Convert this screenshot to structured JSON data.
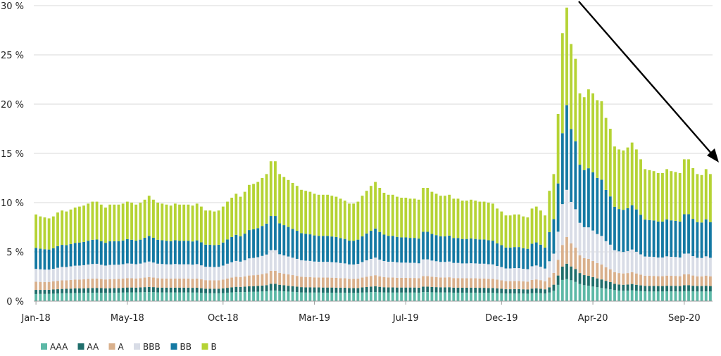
{
  "chart_data": {
    "type": "bar",
    "stacked": true,
    "title": "",
    "xlabel": "",
    "ylabel": "",
    "ylim": [
      0,
      30
    ],
    "y_ticks": [
      "0 %",
      "5 %",
      "10 %",
      "15 %",
      "20 %",
      "25 %",
      "30 %"
    ],
    "x_tick_labels": [
      "Jan-18",
      "May-18",
      "Oct-18",
      "Mar-19",
      "Jul-19",
      "Dec-19",
      "Apr-20",
      "Sep-20"
    ],
    "x_tick_indices": [
      0,
      21,
      43,
      64,
      85,
      107,
      128,
      149
    ],
    "grid": "horizontal",
    "legend_position": "bottom-left",
    "colors": {
      "AAA": "#5cb8a6",
      "AA": "#1f6e6b",
      "A": "#d9b08c",
      "BBB": "#d8dce6",
      "BB": "#1479a3",
      "B": "#b5d334"
    },
    "totals": [
      8.8,
      8.6,
      8.5,
      8.4,
      8.6,
      9.0,
      9.2,
      9.1,
      9.3,
      9.5,
      9.6,
      9.7,
      9.9,
      10.1,
      10.1,
      9.8,
      9.5,
      9.8,
      9.8,
      9.8,
      9.9,
      10.1,
      10.0,
      9.8,
      10.0,
      10.3,
      10.7,
      10.3,
      10.0,
      9.9,
      9.8,
      9.7,
      9.9,
      9.8,
      9.8,
      9.8,
      9.7,
      9.9,
      9.6,
      9.2,
      9.2,
      9.1,
      9.2,
      9.6,
      10.1,
      10.5,
      10.9,
      10.6,
      11.1,
      11.8,
      11.9,
      12.1,
      12.5,
      12.9,
      14.2,
      14.2,
      12.9,
      12.6,
      12.3,
      12.0,
      11.7,
      11.3,
      11.2,
      11.1,
      10.9,
      10.8,
      10.8,
      10.8,
      10.7,
      10.6,
      10.4,
      10.2,
      9.9,
      9.9,
      10.1,
      10.7,
      11.2,
      11.7,
      12.1,
      11.5,
      11.0,
      10.8,
      10.8,
      10.6,
      10.5,
      10.5,
      10.4,
      10.4,
      10.3,
      11.5,
      11.5,
      11.1,
      10.9,
      10.7,
      10.7,
      10.8,
      10.4,
      10.4,
      10.2,
      10.2,
      10.3,
      10.2,
      10.1,
      10.1,
      10.0,
      9.9,
      9.4,
      9.1,
      8.7,
      8.7,
      8.8,
      8.8,
      8.6,
      8.5,
      9.4,
      9.6,
      9.2,
      8.7,
      11.2,
      12.9,
      19.0,
      27.2,
      29.8,
      26.1,
      24.6,
      21.1,
      20.7,
      21.5,
      21.1,
      20.4,
      20.3,
      18.6,
      17.5,
      15.7,
      15.4,
      15.3,
      15.6,
      16.1,
      15.4,
      14.4,
      13.4,
      13.3,
      13.2,
      13.0,
      13.0,
      13.4,
      13.2,
      13.1,
      13.0,
      14.4,
      14.4,
      13.5,
      12.9,
      12.8,
      13.4,
      12.9
    ],
    "series": [
      {
        "name": "AAA",
        "values": [
          0.72,
          0.73,
          0.73,
          0.74,
          0.76,
          0.78,
          0.8,
          0.81,
          0.82,
          0.83,
          0.83,
          0.84,
          0.85,
          0.85,
          0.86,
          0.85,
          0.84,
          0.84,
          0.85,
          0.86,
          0.87,
          0.89,
          0.89,
          0.89,
          0.9,
          0.91,
          0.92,
          0.91,
          0.89,
          0.88,
          0.88,
          0.88,
          0.88,
          0.88,
          0.88,
          0.88,
          0.87,
          0.87,
          0.84,
          0.81,
          0.8,
          0.8,
          0.8,
          0.82,
          0.86,
          0.89,
          0.92,
          0.92,
          0.93,
          0.94,
          0.95,
          0.96,
          0.98,
          1.0,
          1.08,
          1.08,
          1.03,
          1.0,
          0.97,
          0.94,
          0.91,
          0.88,
          0.87,
          0.87,
          0.87,
          0.87,
          0.86,
          0.86,
          0.86,
          0.86,
          0.86,
          0.86,
          0.85,
          0.84,
          0.84,
          0.87,
          0.89,
          0.91,
          0.93,
          0.9,
          0.88,
          0.87,
          0.87,
          0.87,
          0.87,
          0.87,
          0.87,
          0.87,
          0.86,
          0.92,
          0.92,
          0.9,
          0.89,
          0.88,
          0.88,
          0.88,
          0.86,
          0.86,
          0.86,
          0.86,
          0.86,
          0.86,
          0.85,
          0.85,
          0.84,
          0.84,
          0.82,
          0.8,
          0.78,
          0.78,
          0.78,
          0.78,
          0.77,
          0.76,
          0.81,
          0.83,
          0.81,
          0.77,
          0.87,
          1.05,
          1.65,
          2.15,
          2.25,
          2.12,
          1.95,
          1.75,
          1.62,
          1.56,
          1.48,
          1.41,
          1.33,
          1.27,
          1.2,
          1.12,
          1.07,
          1.05,
          1.06,
          1.1,
          1.05,
          1.02,
          0.99,
          0.98,
          0.98,
          0.98,
          0.98,
          0.99,
          0.99,
          0.99,
          0.98,
          1.01,
          1.02,
          0.99,
          0.98,
          0.98,
          0.99,
          0.98
        ]
      },
      {
        "name": "AA",
        "values": [
          0.42,
          0.41,
          0.41,
          0.41,
          0.42,
          0.43,
          0.44,
          0.44,
          0.45,
          0.46,
          0.46,
          0.46,
          0.47,
          0.48,
          0.48,
          0.47,
          0.46,
          0.47,
          0.47,
          0.47,
          0.48,
          0.49,
          0.49,
          0.48,
          0.49,
          0.51,
          0.52,
          0.51,
          0.49,
          0.49,
          0.49,
          0.49,
          0.49,
          0.49,
          0.49,
          0.49,
          0.48,
          0.49,
          0.47,
          0.45,
          0.45,
          0.45,
          0.45,
          0.47,
          0.49,
          0.51,
          0.53,
          0.52,
          0.54,
          0.56,
          0.57,
          0.58,
          0.6,
          0.62,
          0.68,
          0.68,
          0.63,
          0.61,
          0.59,
          0.58,
          0.56,
          0.54,
          0.53,
          0.53,
          0.52,
          0.52,
          0.52,
          0.52,
          0.52,
          0.51,
          0.5,
          0.5,
          0.48,
          0.48,
          0.49,
          0.52,
          0.54,
          0.56,
          0.58,
          0.55,
          0.53,
          0.52,
          0.52,
          0.51,
          0.51,
          0.51,
          0.51,
          0.51,
          0.5,
          0.55,
          0.55,
          0.54,
          0.53,
          0.52,
          0.52,
          0.53,
          0.51,
          0.51,
          0.5,
          0.5,
          0.51,
          0.5,
          0.5,
          0.5,
          0.49,
          0.49,
          0.47,
          0.45,
          0.43,
          0.43,
          0.44,
          0.44,
          0.43,
          0.42,
          0.46,
          0.47,
          0.45,
          0.43,
          0.53,
          0.62,
          0.95,
          1.35,
          1.55,
          1.4,
          1.3,
          1.1,
          1.02,
          1.01,
          0.96,
          0.9,
          0.87,
          0.79,
          0.73,
          0.64,
          0.62,
          0.61,
          0.62,
          0.64,
          0.61,
          0.58,
          0.56,
          0.56,
          0.56,
          0.55,
          0.55,
          0.57,
          0.56,
          0.56,
          0.55,
          0.6,
          0.6,
          0.57,
          0.55,
          0.55,
          0.57,
          0.55
        ]
      },
      {
        "name": "A",
        "values": [
          0.83,
          0.81,
          0.8,
          0.8,
          0.82,
          0.85,
          0.87,
          0.86,
          0.88,
          0.9,
          0.9,
          0.91,
          0.93,
          0.95,
          0.95,
          0.92,
          0.9,
          0.92,
          0.92,
          0.92,
          0.93,
          0.95,
          0.94,
          0.93,
          0.94,
          0.97,
          1.0,
          0.97,
          0.94,
          0.93,
          0.92,
          0.92,
          0.93,
          0.92,
          0.92,
          0.92,
          0.91,
          0.93,
          0.9,
          0.87,
          0.87,
          0.86,
          0.87,
          0.9,
          0.95,
          0.99,
          1.02,
          1.0,
          1.04,
          1.1,
          1.11,
          1.13,
          1.16,
          1.2,
          1.32,
          1.32,
          1.2,
          1.17,
          1.15,
          1.12,
          1.09,
          1.06,
          1.05,
          1.04,
          1.02,
          1.01,
          1.01,
          1.01,
          1.0,
          0.99,
          0.97,
          0.96,
          0.93,
          0.93,
          0.95,
          1.0,
          1.05,
          1.09,
          1.12,
          1.07,
          1.03,
          1.01,
          1.01,
          0.99,
          0.98,
          0.98,
          0.97,
          0.97,
          0.96,
          1.07,
          1.07,
          1.04,
          1.02,
          1.0,
          1.0,
          1.01,
          0.97,
          0.97,
          0.96,
          0.96,
          0.96,
          0.96,
          0.95,
          0.95,
          0.94,
          0.93,
          0.89,
          0.86,
          0.82,
          0.82,
          0.83,
          0.83,
          0.81,
          0.8,
          0.88,
          0.9,
          0.87,
          0.82,
          1.0,
          1.2,
          1.6,
          2.2,
          2.7,
          2.35,
          2.18,
          1.8,
          1.72,
          1.72,
          1.63,
          1.55,
          1.52,
          1.38,
          1.3,
          1.18,
          1.16,
          1.15,
          1.17,
          1.2,
          1.15,
          1.09,
          1.03,
          1.03,
          1.02,
          1.0,
          1.0,
          1.03,
          1.02,
          1.01,
          1.0,
          1.11,
          1.11,
          1.04,
          0.99,
          0.98,
          1.03,
          0.99
        ]
      },
      {
        "name": "BBB",
        "values": [
          1.3,
          1.28,
          1.26,
          1.25,
          1.28,
          1.33,
          1.36,
          1.35,
          1.38,
          1.41,
          1.42,
          1.44,
          1.47,
          1.49,
          1.5,
          1.45,
          1.41,
          1.45,
          1.45,
          1.45,
          1.47,
          1.5,
          1.48,
          1.45,
          1.48,
          1.53,
          1.58,
          1.53,
          1.48,
          1.47,
          1.45,
          1.44,
          1.47,
          1.45,
          1.45,
          1.45,
          1.44,
          1.47,
          1.42,
          1.36,
          1.36,
          1.35,
          1.36,
          1.42,
          1.5,
          1.56,
          1.61,
          1.57,
          1.64,
          1.74,
          1.76,
          1.79,
          1.85,
          1.91,
          2.1,
          2.1,
          1.9,
          1.86,
          1.82,
          1.77,
          1.73,
          1.67,
          1.66,
          1.64,
          1.61,
          1.6,
          1.6,
          1.6,
          1.58,
          1.57,
          1.54,
          1.51,
          1.47,
          1.47,
          1.5,
          1.58,
          1.66,
          1.73,
          1.79,
          1.7,
          1.63,
          1.6,
          1.6,
          1.57,
          1.55,
          1.55,
          1.54,
          1.54,
          1.52,
          1.7,
          1.7,
          1.64,
          1.61,
          1.58,
          1.58,
          1.6,
          1.54,
          1.54,
          1.51,
          1.51,
          1.52,
          1.51,
          1.5,
          1.5,
          1.48,
          1.47,
          1.39,
          1.35,
          1.29,
          1.29,
          1.3,
          1.3,
          1.27,
          1.26,
          1.39,
          1.42,
          1.36,
          1.29,
          1.65,
          1.95,
          2.85,
          4.15,
          4.8,
          4.2,
          3.9,
          3.3,
          3.15,
          3.2,
          3.1,
          2.95,
          2.9,
          2.65,
          2.5,
          2.24,
          2.2,
          2.18,
          2.23,
          2.3,
          2.2,
          2.06,
          1.95,
          1.94,
          1.93,
          1.9,
          1.9,
          1.96,
          1.93,
          1.92,
          1.9,
          2.1,
          2.1,
          1.97,
          1.88,
          1.87,
          1.96,
          1.88
        ]
      },
      {
        "name": "BB",
        "values": [
          2.14,
          2.09,
          2.07,
          2.04,
          2.09,
          2.19,
          2.24,
          2.22,
          2.26,
          2.31,
          2.34,
          2.36,
          2.41,
          2.46,
          2.46,
          2.39,
          2.31,
          2.39,
          2.39,
          2.39,
          2.41,
          2.46,
          2.43,
          2.39,
          2.43,
          2.51,
          2.6,
          2.51,
          2.43,
          2.41,
          2.39,
          2.36,
          2.41,
          2.39,
          2.39,
          2.39,
          2.36,
          2.41,
          2.34,
          2.24,
          2.24,
          2.22,
          2.24,
          2.34,
          2.46,
          2.56,
          2.65,
          2.58,
          2.7,
          2.87,
          2.9,
          2.95,
          3.04,
          3.14,
          3.46,
          3.46,
          3.14,
          3.07,
          3.0,
          2.92,
          2.85,
          2.75,
          2.73,
          2.7,
          2.65,
          2.63,
          2.63,
          2.63,
          2.6,
          2.58,
          2.53,
          2.48,
          2.41,
          2.41,
          2.46,
          2.6,
          2.73,
          2.85,
          2.95,
          2.8,
          2.68,
          2.63,
          2.63,
          2.58,
          2.56,
          2.56,
          2.53,
          2.53,
          2.51,
          2.8,
          2.8,
          2.7,
          2.65,
          2.6,
          2.6,
          2.63,
          2.53,
          2.53,
          2.48,
          2.48,
          2.51,
          2.48,
          2.46,
          2.46,
          2.43,
          2.41,
          2.29,
          2.22,
          2.12,
          2.12,
          2.14,
          2.14,
          2.09,
          2.07,
          2.29,
          2.34,
          2.24,
          2.12,
          2.95,
          3.5,
          4.9,
          7.2,
          8.6,
          7.4,
          6.9,
          5.9,
          5.8,
          6.0,
          5.9,
          5.7,
          5.7,
          5.2,
          4.9,
          4.4,
          4.3,
          4.28,
          4.35,
          4.5,
          4.3,
          4.02,
          3.75,
          3.72,
          3.7,
          3.65,
          3.65,
          3.75,
          3.7,
          3.67,
          3.65,
          4.0,
          4.0,
          3.78,
          3.62,
          3.6,
          3.75,
          3.62
        ]
      },
      {
        "name": "B",
        "values": [
          3.39,
          3.28,
          3.23,
          3.16,
          3.23,
          3.42,
          3.49,
          3.42,
          3.51,
          3.59,
          3.65,
          3.69,
          3.77,
          3.87,
          3.85,
          3.72,
          3.58,
          3.73,
          3.72,
          3.71,
          3.74,
          3.81,
          3.77,
          3.66,
          3.76,
          3.87,
          4.08,
          3.87,
          3.77,
          3.72,
          3.67,
          3.61,
          3.72,
          3.67,
          3.67,
          3.67,
          3.64,
          3.73,
          3.63,
          3.47,
          3.48,
          3.42,
          3.48,
          3.65,
          3.84,
          3.99,
          4.17,
          4.01,
          4.25,
          4.59,
          4.61,
          4.69,
          4.87,
          5.03,
          5.56,
          5.56,
          5.0,
          4.89,
          4.77,
          4.67,
          4.56,
          4.4,
          4.36,
          4.32,
          4.23,
          4.17,
          4.18,
          4.18,
          4.14,
          4.09,
          4.0,
          3.89,
          3.76,
          3.77,
          3.86,
          4.13,
          4.33,
          4.56,
          4.73,
          4.48,
          4.25,
          4.17,
          4.17,
          4.08,
          4.03,
          4.03,
          3.98,
          3.98,
          3.95,
          4.46,
          4.46,
          4.28,
          4.2,
          4.12,
          4.12,
          4.15,
          3.99,
          3.99,
          3.89,
          3.89,
          3.94,
          3.89,
          3.84,
          3.84,
          3.82,
          3.76,
          3.54,
          3.42,
          3.26,
          3.26,
          3.31,
          3.31,
          3.23,
          3.19,
          3.57,
          3.64,
          3.47,
          3.27,
          4.2,
          4.58,
          7.05,
          10.15,
          9.9,
          8.63,
          8.37,
          7.25,
          7.39,
          8.01,
          8.03,
          7.89,
          7.98,
          7.31,
          6.87,
          6.12,
          6.05,
          6.03,
          6.17,
          6.36,
          6.09,
          5.63,
          5.12,
          5.07,
          5.01,
          4.92,
          4.92,
          5.1,
          5.0,
          4.96,
          4.92,
          5.58,
          5.57,
          5.15,
          4.88,
          4.82,
          5.1,
          4.88
        ]
      }
    ]
  }
}
